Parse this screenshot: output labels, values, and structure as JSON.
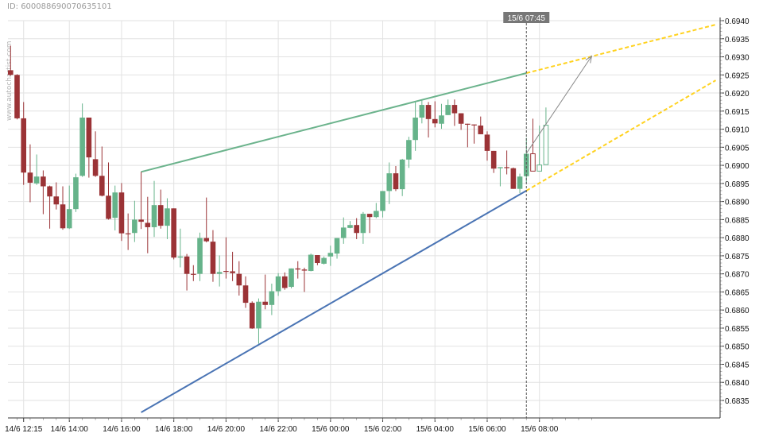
{
  "header": {
    "id_label": "ID: 600088690070635101",
    "watermark": "www.autochartist.com"
  },
  "chart_data": {
    "type": "candlestick",
    "colors": {
      "up": "#66b38a",
      "down": "#9b3336",
      "resistance": "#6bb38c",
      "support": "#4a74b4",
      "projection": "#ffd21f",
      "arrow": "#888888",
      "grid": "#e2e2e2"
    },
    "y_axis": {
      "range": [
        0.6831,
        0.6941
      ],
      "ticks": [
        "0.6835",
        "0.6840",
        "0.6845",
        "0.6850",
        "0.6855",
        "0.6860",
        "0.6865",
        "0.6870",
        "0.6875",
        "0.6880",
        "0.6885",
        "0.6890",
        "0.6895",
        "0.6900",
        "0.6905",
        "0.6910",
        "0.6915",
        "0.6920",
        "0.6925",
        "0.6930",
        "0.6935",
        "0.6940"
      ],
      "position": "right"
    },
    "x_axis": {
      "ticks": [
        "14/6 12:15",
        "14/6 14:00",
        "14/6 16:00",
        "14/6 18:00",
        "14/6 20:00",
        "14/6 22:00",
        "15/6 00:00",
        "15/6 02:00",
        "15/6 04:00",
        "15/6 06:00",
        "15/6 08:00"
      ]
    },
    "grid": true,
    "candle_fields": [
      "time",
      "open",
      "high",
      "low",
      "close"
    ],
    "candles": [
      [
        "14/6 11:45",
        0.69263,
        0.69331,
        0.69248,
        0.6925
      ],
      [
        "14/6 12:00",
        0.6925,
        0.69252,
        0.69127,
        0.6913
      ],
      [
        "14/6 12:15",
        0.6913,
        0.69175,
        0.68946,
        0.6898
      ],
      [
        "14/6 12:30",
        0.6898,
        0.69058,
        0.68898,
        0.68952
      ],
      [
        "14/6 12:45",
        0.6895,
        0.6903,
        0.68946,
        0.68969
      ],
      [
        "14/6 13:00",
        0.68969,
        0.68986,
        0.68865,
        0.68942
      ],
      [
        "14/6 13:15",
        0.68942,
        0.68944,
        0.68825,
        0.68914
      ],
      [
        "14/6 13:30",
        0.68914,
        0.68953,
        0.68878,
        0.68892
      ],
      [
        "14/6 13:45",
        0.68892,
        0.68942,
        0.68822,
        0.68826
      ],
      [
        "14/6 14:00",
        0.68826,
        0.68944,
        0.68824,
        0.68879
      ],
      [
        "14/6 14:15",
        0.68879,
        0.68977,
        0.68871,
        0.68967
      ],
      [
        "14/6 14:30",
        0.68971,
        0.69171,
        0.68968,
        0.69132
      ],
      [
        "14/6 14:45",
        0.69132,
        0.69132,
        0.68966,
        0.69022
      ],
      [
        "14/6 15:00",
        0.69017,
        0.69094,
        0.68968,
        0.68971
      ],
      [
        "14/6 15:15",
        0.68971,
        0.69052,
        0.68914,
        0.68916
      ],
      [
        "14/6 15:30",
        0.68916,
        0.69008,
        0.6885,
        0.68852
      ],
      [
        "14/6 15:45",
        0.68855,
        0.68944,
        0.6882,
        0.68925
      ],
      [
        "14/6 16:00",
        0.68925,
        0.68951,
        0.68791,
        0.68812
      ],
      [
        "14/6 16:15",
        0.68812,
        0.68867,
        0.68766,
        0.68811
      ],
      [
        "14/6 16:30",
        0.68813,
        0.68902,
        0.68788,
        0.6885
      ],
      [
        "14/6 16:45",
        0.6885,
        0.68982,
        0.68824,
        0.68844
      ],
      [
        "14/6 17:00",
        0.68841,
        0.68913,
        0.68757,
        0.68829
      ],
      [
        "14/6 17:15",
        0.68829,
        0.68957,
        0.68802,
        0.6889
      ],
      [
        "14/6 17:30",
        0.6889,
        0.68933,
        0.68825,
        0.68833
      ],
      [
        "14/6 17:45",
        0.68833,
        0.68909,
        0.68796,
        0.68881
      ],
      [
        "14/6 18:00",
        0.68881,
        0.68881,
        0.6874,
        0.68745
      ],
      [
        "14/6 18:15",
        0.68745,
        0.68825,
        0.68718,
        0.68748
      ],
      [
        "14/6 18:30",
        0.68748,
        0.68755,
        0.68654,
        0.687
      ],
      [
        "14/6 18:45",
        0.687,
        0.68724,
        0.6868,
        0.68699
      ],
      [
        "14/6 19:00",
        0.687,
        0.68814,
        0.6868,
        0.68799
      ],
      [
        "14/6 19:15",
        0.68799,
        0.68911,
        0.68787,
        0.6879
      ],
      [
        "14/6 19:30",
        0.68789,
        0.68821,
        0.68678,
        0.687
      ],
      [
        "14/6 19:45",
        0.687,
        0.68751,
        0.68665,
        0.68705
      ],
      [
        "14/6 20:00",
        0.68708,
        0.68801,
        0.68687,
        0.68707
      ],
      [
        "14/6 20:15",
        0.68707,
        0.68761,
        0.6868,
        0.68702
      ],
      [
        "14/6 20:30",
        0.687,
        0.68735,
        0.6864,
        0.68668
      ],
      [
        "14/6 20:45",
        0.68668,
        0.68693,
        0.68606,
        0.6862
      ],
      [
        "14/6 21:00",
        0.6862,
        0.68624,
        0.68548,
        0.68549
      ],
      [
        "14/6 21:15",
        0.68549,
        0.68632,
        0.68507,
        0.68623
      ],
      [
        "14/6 21:30",
        0.68623,
        0.68698,
        0.68602,
        0.68614
      ],
      [
        "14/6 21:45",
        0.68614,
        0.68673,
        0.68586,
        0.68652
      ],
      [
        "14/6 22:00",
        0.68652,
        0.68702,
        0.68639,
        0.68693
      ],
      [
        "14/6 22:15",
        0.68693,
        0.68704,
        0.68656,
        0.68661
      ],
      [
        "14/6 22:30",
        0.68664,
        0.68715,
        0.6866,
        0.68715
      ],
      [
        "14/6 22:45",
        0.68715,
        0.68735,
        0.68687,
        0.68712
      ],
      [
        "14/6 23:00",
        0.68712,
        0.68717,
        0.6865,
        0.68709
      ],
      [
        "14/6 23:15",
        0.68708,
        0.68756,
        0.68707,
        0.68753
      ],
      [
        "14/6 23:30",
        0.68752,
        0.68752,
        0.68724,
        0.6873
      ],
      [
        "14/6 23:45",
        0.68728,
        0.68748,
        0.68726,
        0.68744
      ],
      [
        "15/6 00:00",
        0.68748,
        0.68778,
        0.68722,
        0.68758
      ],
      [
        "15/6 00:15",
        0.68756,
        0.68799,
        0.68742,
        0.68799
      ],
      [
        "15/6 00:30",
        0.68799,
        0.68856,
        0.68783,
        0.68828
      ],
      [
        "15/6 00:45",
        0.68827,
        0.68846,
        0.68826,
        0.68835
      ],
      [
        "15/6 01:00",
        0.68835,
        0.68854,
        0.68796,
        0.68813
      ],
      [
        "15/6 01:15",
        0.68813,
        0.68871,
        0.68783,
        0.68866
      ],
      [
        "15/6 01:30",
        0.68866,
        0.68866,
        0.68813,
        0.68857
      ],
      [
        "15/6 01:45",
        0.68857,
        0.68896,
        0.68854,
        0.68874
      ],
      [
        "15/6 02:00",
        0.68874,
        0.68929,
        0.68856,
        0.68929
      ],
      [
        "15/6 02:15",
        0.68929,
        0.69008,
        0.68893,
        0.68978
      ],
      [
        "15/6 02:30",
        0.68978,
        0.68998,
        0.68929,
        0.68934
      ],
      [
        "15/6 02:45",
        0.68934,
        0.69018,
        0.68915,
        0.69016
      ],
      [
        "15/6 03:00",
        0.69016,
        0.69079,
        0.68993,
        0.6907
      ],
      [
        "15/6 03:15",
        0.6907,
        0.69175,
        0.6904,
        0.69132
      ],
      [
        "15/6 03:30",
        0.69132,
        0.6918,
        0.69116,
        0.69167
      ],
      [
        "15/6 03:45",
        0.69167,
        0.69175,
        0.69077,
        0.69128
      ],
      [
        "15/6 04:00",
        0.69128,
        0.69177,
        0.69105,
        0.69116
      ],
      [
        "15/6 04:15",
        0.69115,
        0.6917,
        0.69101,
        0.69138
      ],
      [
        "15/6 04:30",
        0.69139,
        0.69182,
        0.69139,
        0.69167
      ],
      [
        "15/6 04:45",
        0.69167,
        0.69182,
        0.69109,
        0.69144
      ],
      [
        "15/6 05:00",
        0.69144,
        0.69144,
        0.69098,
        0.69115
      ],
      [
        "15/6 05:15",
        0.69115,
        0.69115,
        0.6905,
        0.69113
      ],
      [
        "15/6 05:30",
        0.69113,
        0.69113,
        0.6906,
        0.69111
      ],
      [
        "15/6 05:45",
        0.6911,
        0.69135,
        0.69086,
        0.69086
      ],
      [
        "15/6 06:00",
        0.69085,
        0.69094,
        0.69013,
        0.6904
      ],
      [
        "15/6 06:15",
        0.6904,
        0.6904,
        0.68979,
        0.68991
      ],
      [
        "15/6 06:30",
        0.68992,
        0.68995,
        0.68942,
        0.68995
      ],
      [
        "15/6 06:45",
        0.68995,
        0.69041,
        0.68975,
        0.68993
      ],
      [
        "15/6 07:00",
        0.68992,
        0.68994,
        0.68935,
        0.68935
      ],
      [
        "15/6 07:15",
        0.68935,
        0.68977,
        0.68923,
        0.68969
      ],
      [
        "15/6 07:30",
        0.6897,
        0.69076,
        0.68951,
        0.69032
      ]
    ],
    "outlined_candles": [
      [
        "15/6 07:45",
        0.69032,
        0.69129,
        0.68984,
        0.68984
      ],
      [
        "15/6 08:00",
        0.68984,
        0.6911,
        0.68984,
        0.69001
      ],
      [
        "15/6 08:15",
        0.69002,
        0.6916,
        0.69002,
        0.69111
      ]
    ],
    "lines": {
      "resistance": [
        [
          "14/6 16:45",
          0.68982
        ],
        [
          "15/6 07:30",
          0.69255
        ]
      ],
      "support": [
        [
          "14/6 16:45",
          0.68317
        ],
        [
          "15/6 07:30",
          0.6893
        ]
      ],
      "resistance_projection": [
        [
          "15/6 07:30",
          0.69255
        ],
        [
          "15/6 14:45",
          0.69389
        ]
      ],
      "support_projection": [
        [
          "15/6 07:30",
          0.6893
        ],
        [
          "15/6 14:45",
          0.69235
        ]
      ],
      "forecast_arrow": [
        [
          "15/6 07:30",
          0.69033
        ],
        [
          "15/6 10:00",
          0.69302
        ]
      ]
    },
    "marker": {
      "label": "15/6 07:45"
    }
  }
}
